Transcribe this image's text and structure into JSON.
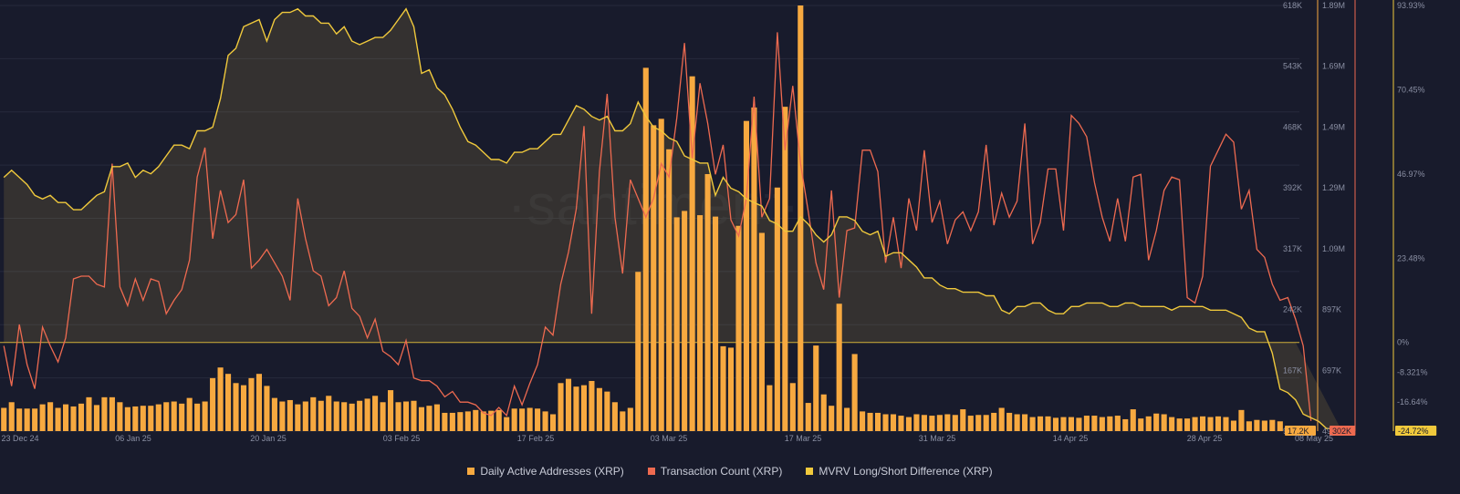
{
  "colors": {
    "background": "#181b2c",
    "daa": "#f7a940",
    "tx": "#ee6a50",
    "mvrv": "#f0c93c",
    "grid": "#262a3d",
    "tick": "#8a8fa3"
  },
  "watermark": "·santiment·",
  "chart_data": {
    "type": "bar",
    "title": "",
    "x_ticks": [
      "23 Dec 24",
      "06 Jan 25",
      "20 Jan 25",
      "03 Feb 25",
      "17 Feb 25",
      "03 Mar 25",
      "17 Mar 25",
      "31 Mar 25",
      "14 Apr 25",
      "28 Apr 25",
      "08 May 25"
    ],
    "legend_position": "bottom",
    "grid": true,
    "axes": {
      "daa": {
        "ticks": [
          "618K",
          "543K",
          "468K",
          "392K",
          "317K",
          "242K",
          "167K",
          "92.2K",
          "17.2K"
        ],
        "range": [
          17200,
          618000
        ],
        "current": "17.2K"
      },
      "tx": {
        "ticks": [
          "1.89M",
          "1.69M",
          "1.49M",
          "1.29M",
          "1.09M",
          "897K",
          "697K",
          "498K",
          "302K"
        ],
        "range": [
          302000,
          1890000
        ],
        "current": "302K"
      },
      "mvrv": {
        "ticks": [
          "93.93%",
          "70.45%",
          "46.97%",
          "23.48%",
          "0%",
          "-8.321%",
          "-16.64%",
          "-24.72%"
        ],
        "range": [
          -24.72,
          93.93
        ],
        "current": "-24.72%"
      }
    },
    "series": [
      {
        "name": "Daily Active Addresses (XRP)",
        "type": "bar",
        "axis": "daa",
        "values": [
          50000,
          58000,
          49000,
          49000,
          49000,
          55000,
          58000,
          50000,
          55000,
          52000,
          56000,
          65000,
          54000,
          65000,
          65000,
          58000,
          51000,
          52000,
          53000,
          53000,
          55000,
          58000,
          59000,
          56000,
          64000,
          56000,
          59000,
          92000,
          107000,
          98000,
          85000,
          82000,
          92000,
          98000,
          81000,
          64000,
          59000,
          61000,
          55000,
          59000,
          65000,
          60000,
          67000,
          59000,
          58000,
          56000,
          60000,
          63000,
          67000,
          58000,
          75000,
          58000,
          59000,
          60000,
          51000,
          53000,
          55000,
          43000,
          43000,
          44000,
          45000,
          47000,
          45000,
          46000,
          47000,
          37000,
          49000,
          49000,
          50000,
          49000,
          45000,
          41000,
          85000,
          91000,
          80000,
          82000,
          88000,
          78000,
          73000,
          58000,
          45000,
          50000,
          242000,
          530000,
          449000,
          458000,
          415000,
          319000,
          328000,
          518000,
          322000,
          380000,
          320000,
          137000,
          135000,
          307000,
          455000,
          474000,
          297000,
          82000,
          361000,
          475000,
          85000,
          618000,
          57000,
          138000,
          69000,
          53000,
          197000,
          50000,
          126000,
          45000,
          43000,
          43000,
          41000,
          41000,
          39000,
          37000,
          41000,
          40000,
          39000,
          40000,
          41000,
          40000,
          48000,
          39000,
          40000,
          40000,
          43000,
          50000,
          43000,
          41000,
          41000,
          37000,
          38000,
          38000,
          36000,
          37000,
          37000,
          36000,
          39000,
          39000,
          37000,
          38000,
          39000,
          34000,
          48000,
          35000,
          38000,
          42000,
          41000,
          37000,
          35000,
          35000,
          37000,
          38000,
          37000,
          38000,
          37000,
          32000,
          47000,
          31000,
          33000,
          32000,
          33000,
          31000,
          24000,
          17200
        ]
      },
      {
        "name": "Transaction Count (XRP)",
        "type": "line",
        "axis": "tx",
        "values": [
          620000,
          470000,
          700000,
          550000,
          460000,
          690000,
          620000,
          560000,
          650000,
          870000,
          880000,
          880000,
          850000,
          840000,
          1300000,
          840000,
          770000,
          870000,
          790000,
          870000,
          860000,
          740000,
          790000,
          830000,
          940000,
          1250000,
          1360000,
          1020000,
          1200000,
          1080000,
          1110000,
          1240000,
          910000,
          940000,
          980000,
          930000,
          880000,
          790000,
          1170000,
          1020000,
          900000,
          880000,
          770000,
          800000,
          900000,
          760000,
          730000,
          650000,
          720000,
          600000,
          580000,
          550000,
          640000,
          500000,
          490000,
          490000,
          470000,
          430000,
          450000,
          410000,
          410000,
          400000,
          370000,
          360000,
          390000,
          360000,
          470000,
          400000,
          480000,
          550000,
          690000,
          660000,
          850000,
          970000,
          1130000,
          1440000,
          740000,
          1270000,
          1560000,
          1100000,
          890000,
          1240000,
          1170000,
          1100000,
          1170000,
          1300000,
          1250000,
          1470000,
          1750000,
          1320000,
          1600000,
          1450000,
          1260000,
          1370000,
          1090000,
          1030000,
          1170000,
          1550000,
          1100000,
          1170000,
          1790000,
          1350000,
          1590000,
          1300000,
          1120000,
          930000,
          830000,
          1200000,
          800000,
          1050000,
          1060000,
          1350000,
          1350000,
          1270000,
          930000,
          1100000,
          910000,
          1170000,
          1050000,
          1350000,
          1080000,
          1160000,
          1000000,
          1090000,
          1120000,
          1050000,
          1120000,
          1370000,
          1070000,
          1190000,
          1100000,
          1160000,
          1450000,
          1000000,
          1080000,
          1280000,
          1280000,
          1050000,
          1480000,
          1450000,
          1400000,
          1230000,
          1100000,
          1010000,
          1170000,
          1010000,
          1250000,
          1260000,
          940000,
          1050000,
          1200000,
          1250000,
          1240000,
          800000,
          780000,
          880000,
          1290000,
          1350000,
          1410000,
          1380000,
          1130000,
          1200000,
          980000,
          950000,
          850000,
          790000,
          800000,
          720000,
          620000,
          340000
        ]
      },
      {
        "name": "MVRV Long/Short Difference (XRP)",
        "type": "line",
        "axis": "mvrv",
        "values": [
          46,
          48,
          46,
          44,
          41,
          40,
          41,
          39,
          39,
          37,
          37,
          39,
          41,
          42,
          49,
          49,
          50,
          46,
          48,
          47,
          49,
          52,
          55,
          55,
          54,
          59,
          59,
          60,
          68,
          80,
          82,
          88,
          89,
          90,
          84,
          90,
          92,
          92,
          93,
          91,
          91,
          89,
          89,
          86,
          88,
          84,
          83,
          84,
          85,
          85,
          87,
          90,
          93,
          88,
          75,
          76,
          71,
          69,
          65,
          60,
          56,
          55,
          53,
          51,
          51,
          50,
          53,
          53,
          54,
          54,
          56,
          58,
          58,
          62,
          66,
          65,
          63,
          62,
          63,
          59,
          59,
          61,
          67,
          63,
          60,
          59,
          57,
          56,
          52,
          51,
          50,
          50,
          41,
          46,
          43,
          42,
          40,
          39,
          38,
          34,
          33,
          31,
          31,
          35,
          33,
          30,
          28,
          30,
          35,
          35,
          34,
          31,
          30,
          31,
          24,
          25,
          25,
          23,
          21,
          18,
          18,
          16,
          15,
          15,
          14,
          14,
          14,
          13,
          13,
          9,
          8,
          10,
          10,
          11,
          11,
          9,
          8,
          8,
          10,
          10,
          11,
          11,
          11,
          10,
          10,
          11,
          11,
          10,
          10,
          10,
          10,
          9,
          10,
          10,
          10,
          10,
          9,
          9,
          9,
          8,
          7,
          4,
          3,
          3,
          -3,
          -13,
          -14,
          -16,
          -20,
          -21,
          -22,
          -24,
          -24,
          -24.72
        ]
      }
    ],
    "zero_line": 0
  }
}
